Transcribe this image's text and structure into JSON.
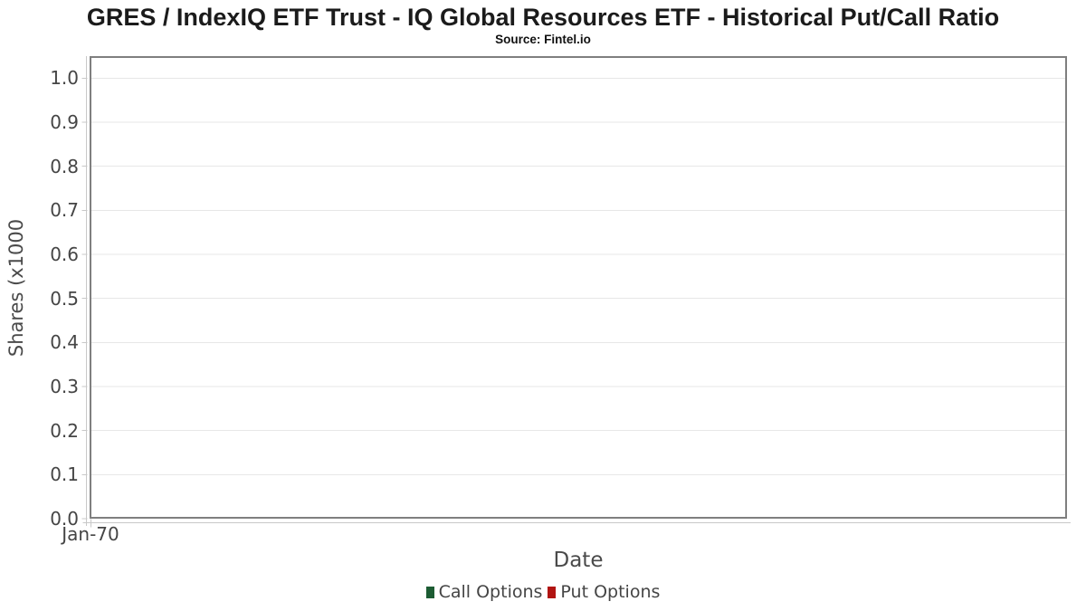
{
  "chart_data": {
    "type": "bar",
    "title": "GRES / IndexIQ ETF Trust - IQ Global Resources ETF - Historical Put/Call Ratio",
    "subtitle": "Source: Fintel.io",
    "xlabel": "Date",
    "ylabel": "Shares (x1000",
    "x_ticks": [
      "Jan-70"
    ],
    "y_ticks": [
      0.0,
      0.1,
      0.2,
      0.3,
      0.4,
      0.5,
      0.6,
      0.7,
      0.8,
      0.9,
      1.0
    ],
    "ylim": [
      0,
      1.05
    ],
    "grid": true,
    "legend_position": "bottom",
    "series": [
      {
        "name": "Call Options",
        "color": "#1d5c33",
        "values": []
      },
      {
        "name": "Put Options",
        "color": "#b11412",
        "values": []
      }
    ]
  },
  "colors": {
    "plot_frame": "#7f7f7f",
    "gridline": "#e7e7e7",
    "axis_line": "#c8c8c8",
    "tick_text": "#454545",
    "title_text": "#1b1b1b",
    "background": "#ffffff"
  }
}
